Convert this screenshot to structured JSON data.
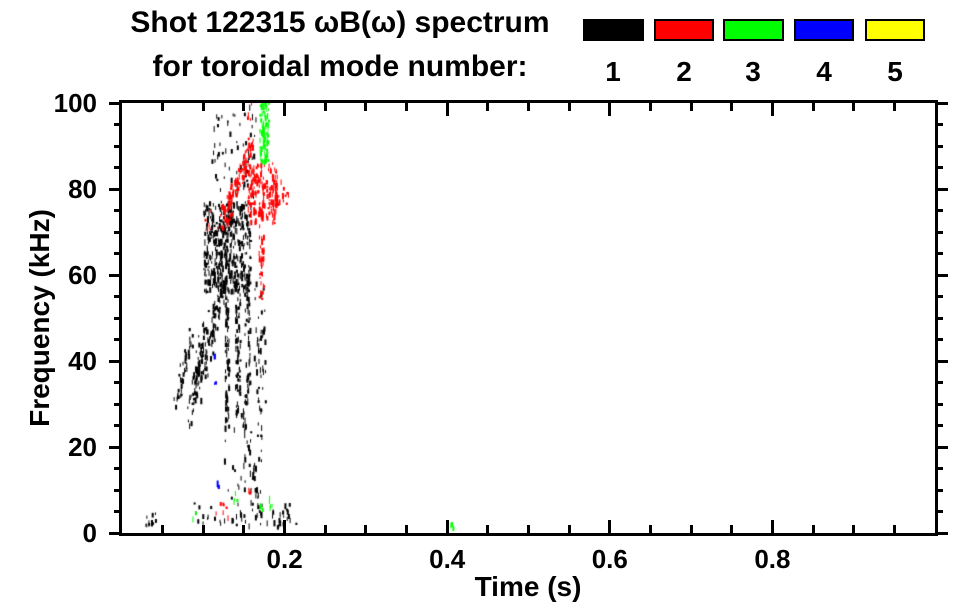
{
  "title": {
    "line1": "Shot 122315 ωB(ω) spectrum",
    "line2": "for toroidal mode number:"
  },
  "legend": {
    "position": "top-right",
    "items": [
      {
        "label": "1",
        "color": "#000000"
      },
      {
        "label": "2",
        "color": "#ff0000"
      },
      {
        "label": "3",
        "color": "#00ff00"
      },
      {
        "label": "4",
        "color": "#0000ff"
      },
      {
        "label": "5",
        "color": "#ffff00"
      }
    ]
  },
  "axes": {
    "xlabel": "Time (s)",
    "ylabel": "Frequency (kHz)",
    "x_ticks": [
      {
        "v": 0.2,
        "label": "0.2"
      },
      {
        "v": 0.4,
        "label": "0.4"
      },
      {
        "v": 0.6,
        "label": "0.6"
      },
      {
        "v": 0.8,
        "label": "0.8"
      }
    ],
    "y_ticks": [
      {
        "v": 0,
        "label": "0"
      },
      {
        "v": 20,
        "label": "20"
      },
      {
        "v": 40,
        "label": "40"
      },
      {
        "v": 60,
        "label": "60"
      },
      {
        "v": 80,
        "label": "80"
      },
      {
        "v": 100,
        "label": "100"
      }
    ],
    "x_minor_step": 0.05,
    "y_minor_step": 5
  },
  "chart_data": {
    "type": "scatter",
    "title": "Shot 122315 ωB(ω) spectrum for toroidal mode number: 1 2 3 4 5",
    "xlabel": "Time (s)",
    "ylabel": "Frequency (kHz)",
    "xlim": [
      0,
      1.0
    ],
    "ylim": [
      0,
      100
    ],
    "grid": false,
    "marker": "small-vertical-dash",
    "legend_position": "top-right",
    "series": [
      {
        "name": "n=1",
        "mode": 1,
        "color": "#000000",
        "clusters": [
          {
            "kind": "diag",
            "t": [
              0.065,
              0.085
            ],
            "f": [
              31,
              46
            ],
            "n": 45,
            "jt": 0.006,
            "jf": 5
          },
          {
            "kind": "diag",
            "t": [
              0.083,
              0.105
            ],
            "f": [
              27,
              52
            ],
            "n": 75,
            "jt": 0.007,
            "jf": 6
          },
          {
            "kind": "diag",
            "t": [
              0.095,
              0.125
            ],
            "f": [
              33,
              60
            ],
            "n": 95,
            "jt": 0.008,
            "jf": 7
          },
          {
            "kind": "box",
            "t": [
              0.1,
              0.158
            ],
            "f": [
              56,
              77
            ],
            "n": 430
          },
          {
            "kind": "box",
            "t": [
              0.126,
              0.131
            ],
            "f": [
              24,
              56
            ],
            "n": 70
          },
          {
            "kind": "box",
            "t": [
              0.139,
              0.145
            ],
            "f": [
              27,
              58
            ],
            "n": 70
          },
          {
            "kind": "box",
            "t": [
              0.15,
              0.157
            ],
            "f": [
              30,
              60
            ],
            "n": 55
          },
          {
            "kind": "box",
            "t": [
              0.162,
              0.176
            ],
            "f": [
              25,
              58
            ],
            "n": 45
          },
          {
            "kind": "box",
            "t": [
              0.105,
              0.165
            ],
            "f": [
              78,
              99
            ],
            "n": 60
          },
          {
            "kind": "diag",
            "t": [
              0.148,
              0.168
            ],
            "f": [
              28,
              6
            ],
            "n": 40,
            "jt": 0.005,
            "jf": 4
          },
          {
            "kind": "box",
            "t": [
              0.125,
              0.175
            ],
            "f": [
              8,
              25
            ],
            "n": 28
          },
          {
            "kind": "box",
            "t": [
              0.026,
              0.042
            ],
            "f": [
              1.5,
              4.5
            ],
            "n": 10
          },
          {
            "kind": "box",
            "t": [
              0.088,
              0.215
            ],
            "f": [
              1,
              7
            ],
            "n": 55
          }
        ]
      },
      {
        "name": "n=2",
        "mode": 2,
        "color": "#ff0000",
        "clusters": [
          {
            "kind": "diag",
            "t": [
              0.124,
              0.158
            ],
            "f": [
              73,
              90
            ],
            "n": 110,
            "jt": 0.008,
            "jf": 5
          },
          {
            "kind": "box",
            "t": [
              0.154,
              0.19
            ],
            "f": [
              72,
              86
            ],
            "n": 170
          },
          {
            "kind": "box",
            "t": [
              0.168,
              0.174
            ],
            "f": [
              54,
              75
            ],
            "n": 40
          },
          {
            "kind": "box",
            "t": [
              0.188,
              0.205
            ],
            "f": [
              76,
              84
            ],
            "n": 16
          },
          {
            "kind": "box",
            "t": [
              0.15,
              0.16
            ],
            "f": [
              96,
              100
            ],
            "n": 4
          },
          {
            "kind": "box",
            "t": [
              0.1,
              0.126
            ],
            "f": [
              70,
              76
            ],
            "n": 10
          },
          {
            "kind": "box",
            "t": [
              0.11,
              0.132
            ],
            "f": [
              3,
              7
            ],
            "n": 7
          },
          {
            "kind": "box",
            "t": [
              0.154,
              0.158
            ],
            "f": [
              8,
              10
            ],
            "n": 3
          }
        ]
      },
      {
        "name": "n=3",
        "mode": 3,
        "color": "#00ff00",
        "clusters": [
          {
            "kind": "box",
            "t": [
              0.169,
              0.18
            ],
            "f": [
              86,
              100
            ],
            "n": 85
          },
          {
            "kind": "box",
            "t": [
              0.086,
              0.09
            ],
            "f": [
              3,
              5
            ],
            "n": 2
          },
          {
            "kind": "box",
            "t": [
              0.137,
              0.142
            ],
            "f": [
              7,
              10
            ],
            "n": 4
          },
          {
            "kind": "box",
            "t": [
              0.168,
              0.172
            ],
            "f": [
              5,
              7
            ],
            "n": 2
          },
          {
            "kind": "box",
            "t": [
              0.18,
              0.186
            ],
            "f": [
              4.5,
              8.5
            ],
            "n": 5
          },
          {
            "kind": "box",
            "t": [
              0.403,
              0.407
            ],
            "f": [
              0.5,
              2.5
            ],
            "n": 3
          }
        ]
      },
      {
        "name": "n=4",
        "mode": 4,
        "color": "#0000ff",
        "clusters": [
          {
            "kind": "box",
            "t": [
              0.112,
              0.114
            ],
            "f": [
              40,
              43
            ],
            "n": 2
          },
          {
            "kind": "box",
            "t": [
              0.113,
              0.115
            ],
            "f": [
              32,
              35
            ],
            "n": 2
          },
          {
            "kind": "box",
            "t": [
              0.116,
              0.119
            ],
            "f": [
              9,
              12
            ],
            "n": 3
          }
        ]
      },
      {
        "name": "n=5",
        "mode": 5,
        "color": "#ffff00",
        "clusters": []
      }
    ]
  }
}
